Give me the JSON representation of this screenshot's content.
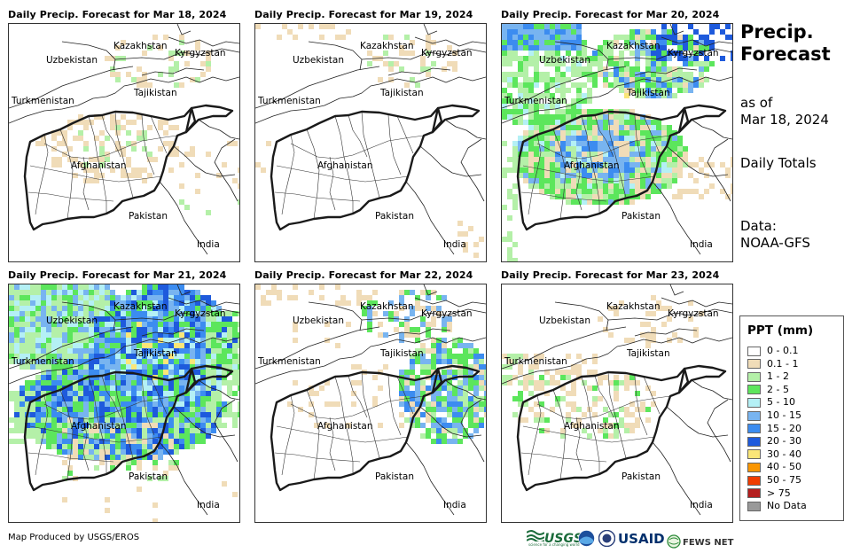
{
  "panels": [
    {
      "title": "Daily Precip. Forecast for Mar 18, 2024",
      "pattern": "light"
    },
    {
      "title": "Daily Precip. Forecast for Mar 19, 2024",
      "pattern": "minimal"
    },
    {
      "title": "Daily Precip. Forecast for Mar 20, 2024",
      "pattern": "moderate"
    },
    {
      "title": "Daily Precip. Forecast for Mar 21, 2024",
      "pattern": "heavy"
    },
    {
      "title": "Daily Precip. Forecast for Mar 22, 2024",
      "pattern": "east"
    },
    {
      "title": "Daily Precip. Forecast for Mar 23, 2024",
      "pattern": "light-west"
    }
  ],
  "map_labels": {
    "kazakhstan": "Kazakhstan",
    "kyrgyzstan": "Kyrgyzstan",
    "uzbekistan": "Uzbekistan",
    "turkmenistan": "Turkmenistan",
    "tajikistan": "Tajikistan",
    "afghanistan": "Afghanistan",
    "pakistan": "Pakistan",
    "india": "India"
  },
  "sidebar": {
    "title_line1": "Precip.",
    "title_line2": "Forecast",
    "as_of_line1": "as of",
    "as_of_line2": "Mar 18, 2024",
    "totals": "Daily Totals",
    "data_line1": "Data:",
    "data_line2": "NOAA-GFS"
  },
  "legend": {
    "title": "PPT (mm)",
    "items": [
      {
        "label": "0 - 0.1",
        "color": "#ffffff"
      },
      {
        "label": "0.1 - 1",
        "color": "#f0dcb8"
      },
      {
        "label": "1 - 2",
        "color": "#b4f0a8"
      },
      {
        "label": "2 - 5",
        "color": "#5ce65c"
      },
      {
        "label": "5 - 10",
        "color": "#b4f0f5"
      },
      {
        "label": "10 - 15",
        "color": "#78b4f0"
      },
      {
        "label": "15 - 20",
        "color": "#3c8cf0"
      },
      {
        "label": "20 - 30",
        "color": "#1e5adc"
      },
      {
        "label": "30 - 40",
        "color": "#fae678"
      },
      {
        "label": "40 - 50",
        "color": "#fa9600"
      },
      {
        "label": "50 - 75",
        "color": "#f03c00"
      },
      {
        "label": "> 75",
        "color": "#b41e1e"
      },
      {
        "label": "No Data",
        "color": "#999999"
      }
    ]
  },
  "footer": {
    "credit": "Map Produced by USGS/EROS",
    "logo_usgs": "USGS",
    "logo_usgs_tag": "science for a changing world",
    "logo_usaid": "USAID",
    "logo_fews": "FEWS NET"
  }
}
